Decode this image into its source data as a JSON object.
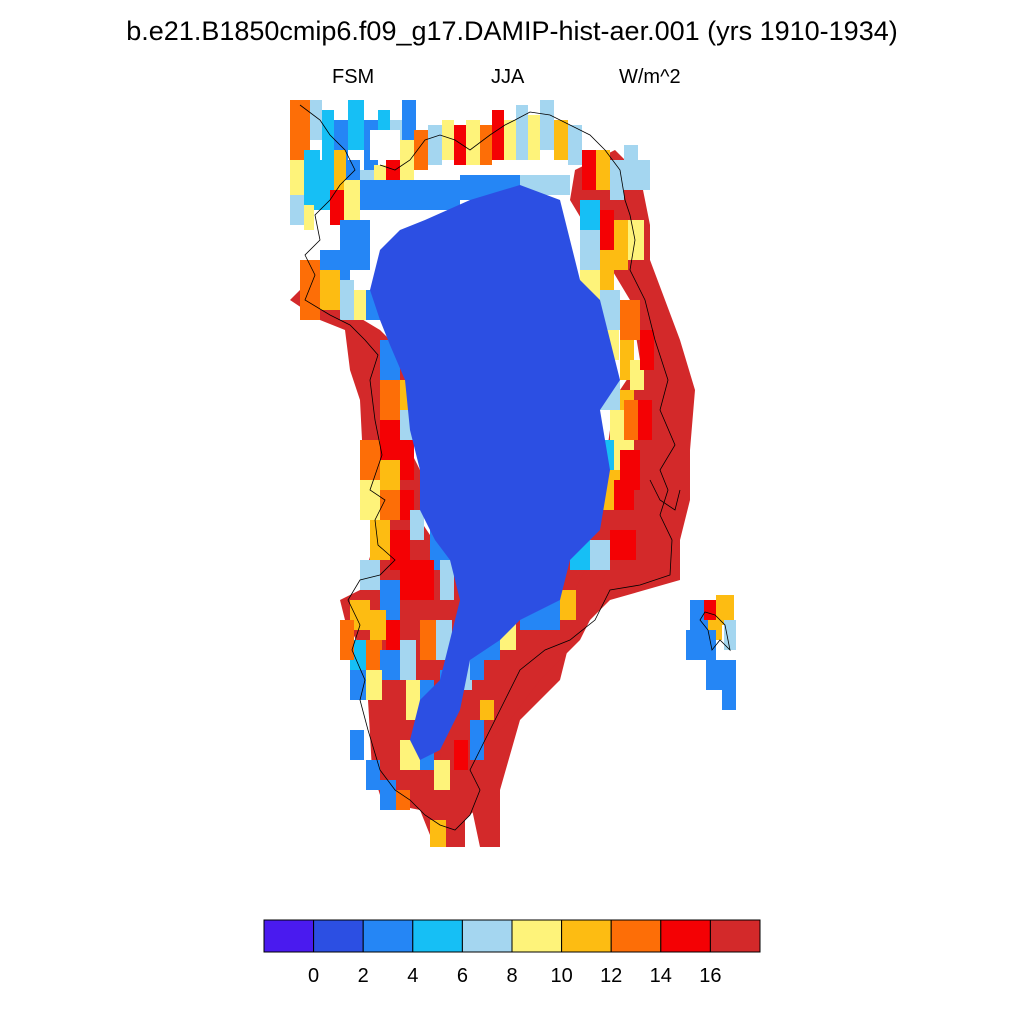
{
  "title": "b.e21.B1850cmip6.f09_g17.DAMIP-hist-aer.001 (yrs 1910-1934)",
  "left_label": "FSM",
  "center_label": "JJA",
  "right_label": "W/m^2",
  "colorbar": {
    "colors": [
      "#4a1aef",
      "#2c4fe3",
      "#2586f5",
      "#16bff5",
      "#a4d6f0",
      "#fef37a",
      "#fdbc12",
      "#fd6e07",
      "#f40104",
      "#d3292a"
    ],
    "tick_labels": [
      "0",
      "2",
      "4",
      "6",
      "8",
      "10",
      "12",
      "14",
      "16"
    ]
  },
  "map": {
    "region": "Greenland",
    "field_description": "FSM JJA",
    "units": "W/m^2",
    "interior_color": "#2c4fe3",
    "margin_color": "#d3292a"
  }
}
